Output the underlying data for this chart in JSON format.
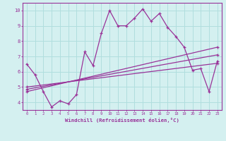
{
  "background_color": "#d4f0f0",
  "grid_color": "#b0dede",
  "line_color": "#993399",
  "spine_color": "#993399",
  "xlim": [
    -0.5,
    23.5
  ],
  "ylim": [
    3.5,
    10.5
  ],
  "yticks": [
    4,
    5,
    6,
    7,
    8,
    9,
    10
  ],
  "xticks": [
    0,
    1,
    2,
    3,
    4,
    5,
    6,
    7,
    8,
    9,
    10,
    11,
    12,
    13,
    14,
    15,
    16,
    17,
    18,
    19,
    20,
    21,
    22,
    23
  ],
  "xlabel": "Windchill (Refroidissement éolien,°C)",
  "series1_x": [
    0,
    1,
    2,
    3,
    4,
    5,
    6,
    7,
    8,
    9,
    10,
    11,
    12,
    13,
    14,
    15,
    16,
    17,
    18,
    19,
    20,
    21,
    22,
    23
  ],
  "series1_y": [
    6.5,
    5.8,
    4.7,
    3.7,
    4.1,
    3.9,
    4.5,
    7.3,
    6.4,
    8.5,
    10.0,
    9.0,
    9.0,
    9.5,
    10.1,
    9.3,
    9.8,
    8.9,
    8.3,
    7.6,
    6.1,
    6.2,
    4.7,
    6.7
  ],
  "series2_x": [
    0,
    23
  ],
  "series2_y": [
    4.7,
    7.6
  ],
  "series3_x": [
    0,
    23
  ],
  "series3_y": [
    5.0,
    6.55
  ],
  "series4_x": [
    0,
    23
  ],
  "series4_y": [
    4.85,
    7.1
  ]
}
